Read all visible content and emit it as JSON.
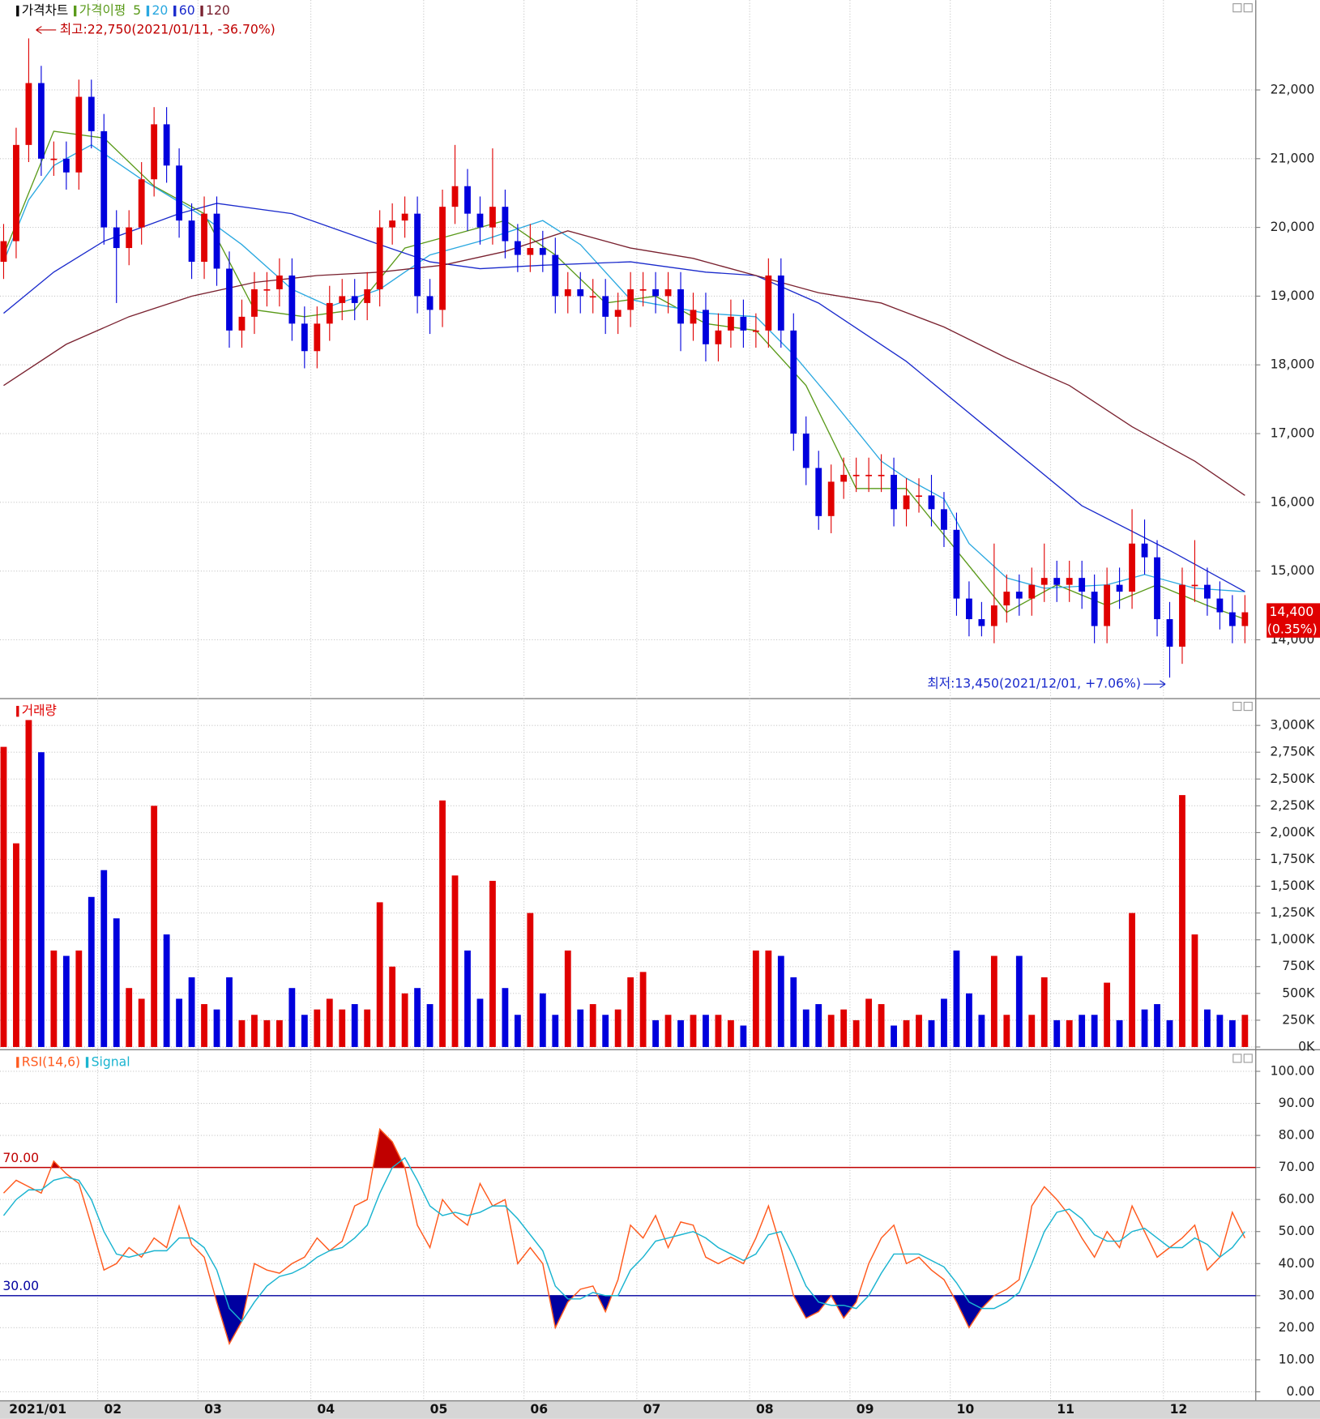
{
  "chart_data": [
    {
      "type": "candlestick",
      "title": "가격차트",
      "ma_title": "가격이평",
      "categories": [
        "2021/01",
        null,
        null,
        null,
        null,
        null,
        null,
        null,
        "02",
        null,
        null,
        null,
        null,
        null,
        null,
        null,
        "03",
        null,
        null,
        null,
        null,
        null,
        null,
        null,
        null,
        "04",
        null,
        null,
        null,
        null,
        null,
        null,
        null,
        null,
        "05",
        null,
        null,
        null,
        null,
        null,
        null,
        null,
        "06",
        null,
        null,
        null,
        null,
        null,
        null,
        null,
        null,
        "07",
        null,
        null,
        null,
        null,
        null,
        null,
        null,
        null,
        "08",
        null,
        null,
        null,
        null,
        null,
        null,
        null,
        "09",
        null,
        null,
        null,
        null,
        null,
        null,
        null,
        "10",
        null,
        null,
        null,
        null,
        null,
        null,
        null,
        "11",
        null,
        null,
        null,
        null,
        null,
        null,
        null,
        null,
        "12",
        null,
        null,
        null,
        null,
        null,
        null
      ],
      "open": [
        19500,
        19800,
        21200,
        22100,
        21000,
        21000,
        20800,
        21900,
        21400,
        20000,
        19700,
        20000,
        20700,
        21500,
        20900,
        20100,
        19500,
        20200,
        19400,
        18500,
        18700,
        19100,
        19100,
        19300,
        18600,
        18200,
        18600,
        18900,
        19000,
        18900,
        19100,
        20000,
        20100,
        20200,
        19000,
        18800,
        20300,
        20600,
        20200,
        20000,
        20300,
        19800,
        19600,
        19700,
        19600,
        19000,
        19100,
        19000,
        19000,
        18700,
        18800,
        19100,
        19100,
        19000,
        19100,
        18600,
        18800,
        18300,
        18500,
        18700,
        18500,
        18500,
        19300,
        18500,
        17000,
        16500,
        15800,
        16300,
        16400,
        16400,
        16400,
        16400,
        15900,
        16100,
        16100,
        15900,
        15600,
        14600,
        14300,
        14200,
        14500,
        14700,
        14600,
        14800,
        14900,
        14800,
        14900,
        14700,
        14200,
        14800,
        14700,
        15400,
        15200,
        14300,
        13900,
        14800,
        14800,
        14600,
        14400,
        14200
      ],
      "high": [
        20050,
        21450,
        22750,
        22350,
        21250,
        21250,
        22150,
        22150,
        21650,
        20250,
        20250,
        20950,
        21750,
        21750,
        21150,
        20350,
        20450,
        20450,
        19650,
        18950,
        19350,
        19350,
        19550,
        19550,
        18850,
        18850,
        19150,
        19250,
        19250,
        19350,
        20250,
        20350,
        20450,
        20450,
        19250,
        20550,
        21200,
        20850,
        20450,
        21150,
        20550,
        20050,
        20050,
        19950,
        19850,
        19350,
        19350,
        19250,
        19250,
        19050,
        19350,
        19350,
        19350,
        19350,
        19350,
        19050,
        19050,
        18750,
        18950,
        18950,
        18750,
        19550,
        19550,
        18750,
        17250,
        16750,
        16550,
        16650,
        16650,
        16650,
        16700,
        16650,
        16350,
        16350,
        16400,
        16150,
        15850,
        14850,
        14550,
        15400,
        14950,
        14950,
        15050,
        15400,
        15150,
        15150,
        15150,
        14950,
        15050,
        15050,
        15900,
        15750,
        15450,
        14550,
        15050,
        15450,
        15050,
        14850,
        14650,
        14650
      ],
      "low": [
        19250,
        19550,
        20950,
        20750,
        20750,
        20550,
        20550,
        21150,
        19750,
        18900,
        19450,
        19750,
        20450,
        20650,
        19850,
        19250,
        19250,
        19150,
        18250,
        18250,
        18450,
        18850,
        18850,
        18350,
        17950,
        17950,
        18350,
        18650,
        18650,
        18650,
        18850,
        19750,
        19850,
        18750,
        18450,
        18550,
        20050,
        19950,
        19750,
        19750,
        19550,
        19350,
        19350,
        19350,
        18750,
        18750,
        18750,
        18750,
        18450,
        18450,
        18550,
        18850,
        18750,
        18750,
        18200,
        18350,
        18050,
        18050,
        18250,
        18250,
        18250,
        18250,
        18250,
        16750,
        16250,
        15600,
        15550,
        16050,
        16150,
        16150,
        16150,
        15650,
        15650,
        15850,
        15650,
        15350,
        14350,
        14050,
        14050,
        13950,
        14250,
        14350,
        14350,
        14550,
        14550,
        14550,
        14450,
        13950,
        13950,
        14450,
        14450,
        14950,
        14050,
        13450,
        13650,
        14550,
        14350,
        14150,
        13950,
        13950
      ],
      "close": [
        19800,
        21200,
        22100,
        21000,
        21000,
        20800,
        21900,
        21400,
        20000,
        19700,
        20000,
        20700,
        21500,
        20900,
        20100,
        19500,
        20200,
        19400,
        18500,
        18700,
        19100,
        19100,
        19300,
        18600,
        18200,
        18600,
        18900,
        19000,
        18900,
        19100,
        20000,
        20100,
        20200,
        19000,
        18800,
        20300,
        20600,
        20200,
        20000,
        20300,
        19800,
        19600,
        19700,
        19600,
        19000,
        19100,
        19000,
        19000,
        18700,
        18800,
        19100,
        19100,
        19000,
        19100,
        18600,
        18800,
        18300,
        18500,
        18700,
        18500,
        18500,
        19300,
        18500,
        17000,
        16500,
        15800,
        16300,
        16400,
        16400,
        16400,
        16400,
        15900,
        16100,
        16100,
        15900,
        15600,
        14600,
        14300,
        14200,
        14500,
        14700,
        14600,
        14800,
        14900,
        14800,
        14900,
        14700,
        14200,
        14800,
        14700,
        15400,
        15200,
        14300,
        13900,
        14800,
        14800,
        14600,
        14400,
        14200,
        14400
      ],
      "up_color": "#e00000",
      "down_color": "#0000dd",
      "ma_series": [
        {
          "name": "5",
          "color": "#5a9a1a",
          "x": [
            0,
            4,
            8,
            12,
            16,
            20,
            24,
            28,
            32,
            36,
            40,
            44,
            48,
            52,
            56,
            60,
            64,
            68,
            72,
            76,
            80,
            84,
            88,
            92,
            96,
            99
          ],
          "values": [
            19600,
            21400,
            21300,
            20600,
            20200,
            18800,
            18700,
            18800,
            19700,
            19900,
            20100,
            19600,
            18900,
            19000,
            18600,
            18500,
            17700,
            16200,
            16200,
            15300,
            14400,
            14800,
            14500,
            14800,
            14500,
            14300
          ]
        },
        {
          "name": "20",
          "color": "#2aa8e0",
          "x": [
            0,
            2,
            4,
            7,
            11,
            16,
            19,
            23,
            26,
            30,
            34,
            38,
            43,
            46,
            50,
            56,
            60,
            63,
            66,
            70,
            72,
            75,
            77,
            80,
            83,
            88,
            91,
            95,
            99
          ],
          "values": [
            19500,
            20400,
            20900,
            21200,
            20700,
            20150,
            19750,
            19100,
            18850,
            19100,
            19600,
            19800,
            20100,
            19750,
            18950,
            18750,
            18700,
            18150,
            17500,
            16600,
            16350,
            16050,
            15400,
            14900,
            14750,
            14800,
            14950,
            14750,
            14700
          ]
        },
        {
          "name": "60",
          "color": "#1a2acc",
          "x": [
            0,
            4,
            8,
            14,
            17,
            23,
            30,
            34,
            38,
            43,
            50,
            56,
            60,
            65,
            72,
            79,
            86,
            93,
            99
          ],
          "values": [
            18750,
            19350,
            19800,
            20200,
            20350,
            20200,
            19750,
            19500,
            19400,
            19450,
            19500,
            19350,
            19300,
            18900,
            18050,
            17000,
            15950,
            15300,
            14700
          ]
        },
        {
          "name": "120",
          "color": "#7a2230",
          "x": [
            0,
            5,
            10,
            15,
            20,
            25,
            30,
            35,
            40,
            45,
            50,
            55,
            60,
            65,
            70,
            75,
            80,
            85,
            90,
            95,
            99
          ],
          "values": [
            17700,
            18300,
            18700,
            19000,
            19200,
            19300,
            19350,
            19450,
            19650,
            19950,
            19700,
            19550,
            19300,
            19050,
            18900,
            18550,
            18100,
            17700,
            17100,
            16600,
            16100
          ]
        }
      ],
      "ylim": [
        13170,
        23070
      ],
      "yticks": [
        {
          "value": 14000,
          "label": "14,000"
        },
        {
          "value": 15000,
          "label": "15,000"
        },
        {
          "value": 16000,
          "label": "16,000"
        },
        {
          "value": 17000,
          "label": "17,000"
        },
        {
          "value": 18000,
          "label": "18,000"
        },
        {
          "value": 19000,
          "label": "19,000"
        },
        {
          "value": 20000,
          "label": "20,000"
        },
        {
          "value": 21000,
          "label": "21,000"
        },
        {
          "value": 22000,
          "label": "22,000"
        }
      ],
      "grid": true,
      "high_annotation": "최고:22,750(2021/01/11, -36.70%)",
      "low_annotation": "최저:13,450(2021/12/01, +7.06%)",
      "last_price": {
        "value": 14400,
        "label": "14,400"
      },
      "last_change": "(0.35%)"
    },
    {
      "type": "bar",
      "title": "거래량",
      "color": "#e00000",
      "values": [
        2800,
        1900,
        3050,
        2750,
        900,
        850,
        900,
        1400,
        1650,
        1200,
        550,
        450,
        2250,
        1050,
        450,
        650,
        400,
        350,
        650,
        250,
        300,
        250,
        250,
        550,
        300,
        350,
        450,
        350,
        400,
        350,
        1350,
        750,
        500,
        550,
        400,
        2300,
        1600,
        900,
        450,
        1550,
        550,
        300,
        1250,
        500,
        300,
        900,
        350,
        400,
        300,
        350,
        650,
        700,
        250,
        300,
        250,
        300,
        300,
        300,
        250,
        200,
        900,
        900,
        850,
        650,
        350,
        400,
        300,
        350,
        250,
        450,
        400,
        200,
        250,
        300,
        250,
        450,
        900,
        500,
        300,
        850,
        300,
        850,
        300,
        650,
        250,
        250,
        300,
        300,
        600,
        250,
        1250,
        350,
        400,
        250,
        2350,
        1050,
        350,
        300,
        250,
        300
      ],
      "ylim": [
        0,
        3140
      ],
      "yticks": [
        {
          "value": 0,
          "label": "0K"
        },
        {
          "value": 250,
          "label": "250K"
        },
        {
          "value": 500,
          "label": "500K"
        },
        {
          "value": 750,
          "label": "750K"
        },
        {
          "value": 1000,
          "label": "1,000K"
        },
        {
          "value": 1250,
          "label": "1,250K"
        },
        {
          "value": 1500,
          "label": "1,500K"
        },
        {
          "value": 1750,
          "label": "1,750K"
        },
        {
          "value": 2000,
          "label": "2,000K"
        },
        {
          "value": 2250,
          "label": "2,250K"
        },
        {
          "value": 2500,
          "label": "2,500K"
        },
        {
          "value": 2750,
          "label": "2,750K"
        },
        {
          "value": 3000,
          "label": "3,000K"
        }
      ],
      "grid": true
    },
    {
      "type": "line",
      "series": [
        {
          "name": "RSI(14,6)",
          "color": "#ff5a1e",
          "values": [
            62,
            66,
            64,
            62,
            72,
            68,
            65,
            52,
            38,
            40,
            45,
            42,
            48,
            45,
            58,
            46,
            42,
            28,
            15,
            22,
            40,
            38,
            37,
            40,
            42,
            48,
            44,
            47,
            58,
            60,
            82,
            78,
            70,
            52,
            45,
            60,
            55,
            52,
            65,
            58,
            60,
            40,
            45,
            40,
            20,
            28,
            32,
            33,
            25,
            35,
            52,
            48,
            55,
            45,
            53,
            52,
            42,
            40,
            42,
            40,
            48,
            58,
            45,
            30,
            23,
            25,
            30,
            23,
            28,
            40,
            48,
            52,
            40,
            42,
            38,
            35,
            28,
            20,
            26,
            30,
            32,
            35,
            58,
            64,
            60,
            55,
            48,
            42,
            50,
            45,
            58,
            50,
            42,
            45,
            48,
            52,
            38,
            42,
            56,
            48
          ]
        },
        {
          "name": "Signal",
          "color": "#1ab4d0",
          "values": [
            55,
            60,
            63,
            63,
            66,
            67,
            66,
            60,
            50,
            43,
            42,
            43,
            44,
            44,
            48,
            48,
            45,
            38,
            26,
            22,
            28,
            33,
            36,
            37,
            39,
            42,
            44,
            45,
            48,
            52,
            62,
            70,
            73,
            66,
            58,
            55,
            56,
            55,
            56,
            58,
            58,
            54,
            49,
            44,
            33,
            29,
            29,
            31,
            30,
            30,
            38,
            42,
            47,
            48,
            49,
            50,
            48,
            45,
            43,
            41,
            43,
            49,
            50,
            42,
            33,
            28,
            27,
            27,
            26,
            30,
            37,
            43,
            43,
            43,
            41,
            39,
            34,
            28,
            26,
            26,
            28,
            31,
            40,
            50,
            56,
            57,
            54,
            49,
            47,
            47,
            50,
            51,
            48,
            45,
            45,
            48,
            46,
            42,
            45,
            50
          ]
        }
      ],
      "levels": [
        {
          "value": 70,
          "label": "70.00",
          "color": "#c00000"
        },
        {
          "value": 30,
          "label": "30.00",
          "color": "#0000a0"
        }
      ],
      "ylim": [
        -2.8,
        105.9
      ],
      "yticks": [
        {
          "value": 0,
          "label": "0.00"
        },
        {
          "value": 10,
          "label": "10.00"
        },
        {
          "value": 20,
          "label": "20.00"
        },
        {
          "value": 30,
          "label": "30.00"
        },
        {
          "value": 40,
          "label": "40.00"
        },
        {
          "value": 50,
          "label": "50.00"
        },
        {
          "value": 60,
          "label": "60.00"
        },
        {
          "value": 70,
          "label": "70.00"
        },
        {
          "value": 80,
          "label": "80.00"
        },
        {
          "value": 90,
          "label": "90.00"
        },
        {
          "value": 100,
          "label": "100.00"
        }
      ],
      "grid": true
    }
  ]
}
